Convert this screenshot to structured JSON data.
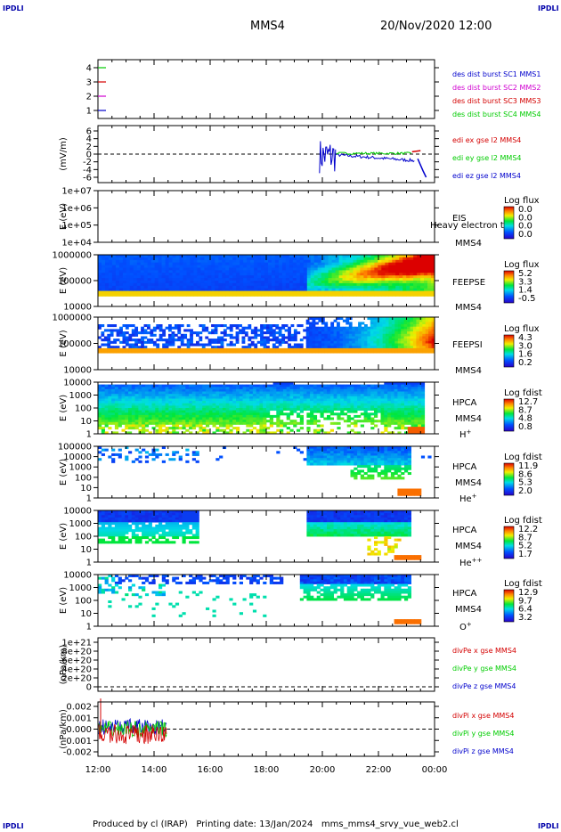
{
  "corners": {
    "tl": "IPDLI",
    "tr": "IPDLI",
    "bl": "IPDLI",
    "br": "IPDLI"
  },
  "header": {
    "spacecraft": "MMS4",
    "datetime": "20/Nov/2020 12:00"
  },
  "footer": {
    "text": "Produced by cl (IRAP)   Printing date: 13/Jan/2024   mms_mms4_srvy_vue_web2.cl"
  },
  "colors": {
    "red": "#d40000",
    "green": "#00cc00",
    "blue": "#0000cc",
    "magenta": "#d000d0"
  },
  "chart_data": [
    {
      "type": "line",
      "id": "burst",
      "yticks": [
        "4",
        "3",
        "2",
        "1"
      ],
      "series": [
        {
          "name": "des dist burst SC1 MMS1",
          "color": "#0000cc"
        },
        {
          "name": "des dist burst SC2 MMS2",
          "color": "#d000d0"
        },
        {
          "name": "des dist burst SC3 MMS3",
          "color": "#d40000"
        },
        {
          "name": "des dist burst SC4 MMS4",
          "color": "#00cc00"
        }
      ]
    },
    {
      "type": "line",
      "id": "efield",
      "ylabel": "(mV/m)",
      "yticks": [
        "6",
        "4",
        "2",
        "0",
        "-2",
        "-4",
        "-6"
      ],
      "series": [
        {
          "name": "edi ex gse l2 MMS4",
          "color": "#d40000"
        },
        {
          "name": "edi ey gse l2 MMS4",
          "color": "#00cc00"
        },
        {
          "name": "edi ez gse l2 MMS4",
          "color": "#0000cc"
        }
      ]
    },
    {
      "type": "heatmap",
      "id": "eis",
      "ylabel": "E (eV)",
      "yticks": [
        "1e+07",
        "1e+06",
        "1e+05",
        "1e+04"
      ],
      "right_labels": [
        "EIS",
        "MMS4"
      ],
      "overlay_text": "Heavy electron to",
      "colorbar": {
        "title": "Log flux",
        "ticks": [
          "0.0",
          "0.0",
          "0.0",
          "0.0"
        ]
      }
    },
    {
      "type": "heatmap",
      "id": "feepse",
      "ylabel": "E (eV)",
      "yticks": [
        "1000000",
        "100000",
        "10000"
      ],
      "right_labels": [
        "FEEPSE",
        "MMS4"
      ],
      "colorbar": {
        "title": "Log flux",
        "ticks": [
          "5.2",
          "3.3",
          "1.4",
          "-0.5"
        ]
      }
    },
    {
      "type": "heatmap",
      "id": "feepsi",
      "ylabel": "E (eV)",
      "yticks": [
        "1000000",
        "100000",
        "10000"
      ],
      "right_labels": [
        "FEEPSI",
        "MMS4"
      ],
      "colorbar": {
        "title": "Log flux",
        "ticks": [
          "4.3",
          "3.0",
          "1.6",
          "0.2"
        ]
      }
    },
    {
      "type": "heatmap",
      "id": "hpca-h",
      "ylabel": "E (eV)",
      "yticks": [
        "10000",
        "1000",
        "100",
        "10",
        "1"
      ],
      "right_labels": [
        "HPCA",
        "MMS4"
      ],
      "species": "H",
      "sup": "+",
      "colorbar": {
        "title": "Log fdist",
        "ticks": [
          "12.7",
          "8.7",
          "4.8",
          "0.8"
        ]
      }
    },
    {
      "type": "heatmap",
      "id": "hpca-he",
      "ylabel": "E (eV)",
      "yticks": [
        "100000",
        "10000",
        "1000",
        "100",
        "10",
        "1"
      ],
      "right_labels": [
        "HPCA",
        "MMS4"
      ],
      "species": "He",
      "sup": "+",
      "colorbar": {
        "title": "Log fdist",
        "ticks": [
          "11.9",
          "8.6",
          "5.3",
          "2.0"
        ]
      }
    },
    {
      "type": "heatmap",
      "id": "hpca-he2",
      "ylabel": "E (eV)",
      "yticks": [
        "10000",
        "1000",
        "100",
        "10",
        "1"
      ],
      "right_labels": [
        "HPCA",
        "MMS4"
      ],
      "species": "He",
      "sup": "++",
      "colorbar": {
        "title": "Log fdist",
        "ticks": [
          "12.2",
          "8.7",
          "5.2",
          "1.7"
        ]
      }
    },
    {
      "type": "heatmap",
      "id": "hpca-o",
      "ylabel": "E (eV)",
      "yticks": [
        "10000",
        "1000",
        "100",
        "10",
        "1"
      ],
      "right_labels": [
        "HPCA",
        "MMS4"
      ],
      "species": "O",
      "sup": "+",
      "colorbar": {
        "title": "Log fdist",
        "ticks": [
          "12.9",
          "9.7",
          "6.4",
          "3.2"
        ]
      }
    },
    {
      "type": "line",
      "id": "divpe",
      "ylabel": "(nPa/km)",
      "yticks": [
        "1e+21",
        "8e+20",
        "6e+20",
        "4e+20",
        "2e+20",
        "0"
      ],
      "series": [
        {
          "name": "divPe x gse MMS4",
          "color": "#d40000"
        },
        {
          "name": "divPe y gse MMS4",
          "color": "#00cc00"
        },
        {
          "name": "divPe z gse MMS4",
          "color": "#0000cc"
        }
      ]
    },
    {
      "type": "line",
      "id": "divpi",
      "ylabel": "(nPa/km)",
      "yticks": [
        "0.002",
        "0.001",
        "0.000",
        "-0.001",
        "-0.002"
      ],
      "series": [
        {
          "name": "divPi x gse MMS4",
          "color": "#d40000"
        },
        {
          "name": "divPi y gse MMS4",
          "color": "#00cc00"
        },
        {
          "name": "divPi z gse MMS4",
          "color": "#0000cc"
        }
      ]
    }
  ],
  "xaxis": {
    "ticks": [
      "12:00",
      "14:00",
      "16:00",
      "18:00",
      "20:00",
      "22:00",
      "00:00"
    ]
  }
}
